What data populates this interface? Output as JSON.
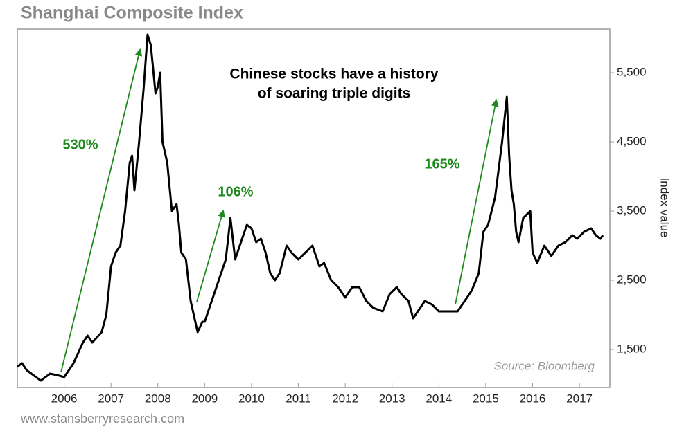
{
  "chart_data": {
    "type": "line",
    "title": "Shanghai Composite Index",
    "annotation_lines": [
      "Chinese stocks have a history",
      "of soaring triple digits"
    ],
    "annotations": [
      "530%",
      "106%",
      "165%"
    ],
    "source": "Source: Bloomberg",
    "footer": "www.stansberryresearch.com",
    "y_label": "Index value",
    "color": "#000000",
    "annotation_color": "#1e8a1e",
    "xlim": [
      2005.0,
      2017.65
    ],
    "xticks": [
      2006,
      2007,
      2008,
      2009,
      2010,
      2011,
      2012,
      2013,
      2014,
      2015,
      2016,
      2017
    ],
    "ylim": [
      950,
      6130
    ],
    "yticks": [
      {
        "value": 1500,
        "label": "1,500"
      },
      {
        "value": 2500,
        "label": "2,500"
      },
      {
        "value": 3500,
        "label": "3,500"
      },
      {
        "value": 4500,
        "label": "4,500"
      },
      {
        "value": 5500,
        "label": "5,500"
      }
    ],
    "x": [
      2005.0,
      2005.1,
      2005.2,
      2005.4,
      2005.5,
      2005.7,
      2005.9,
      2006.0,
      2006.2,
      2006.4,
      2006.5,
      2006.6,
      2006.8,
      2006.9,
      2007.0,
      2007.1,
      2007.2,
      2007.3,
      2007.4,
      2007.45,
      2007.5,
      2007.6,
      2007.7,
      2007.78,
      2007.85,
      2007.95,
      2008.0,
      2008.05,
      2008.1,
      2008.2,
      2008.3,
      2008.4,
      2008.45,
      2008.5,
      2008.6,
      2008.7,
      2008.8,
      2008.85,
      2008.95,
      2009.0,
      2009.1,
      2009.2,
      2009.3,
      2009.45,
      2009.55,
      2009.65,
      2009.75,
      2009.9,
      2010.0,
      2010.1,
      2010.2,
      2010.3,
      2010.4,
      2010.5,
      2010.6,
      2010.75,
      2010.85,
      2011.0,
      2011.15,
      2011.3,
      2011.45,
      2011.55,
      2011.7,
      2011.85,
      2012.0,
      2012.15,
      2012.3,
      2012.45,
      2012.6,
      2012.8,
      2012.95,
      2013.1,
      2013.2,
      2013.35,
      2013.45,
      2013.6,
      2013.7,
      2013.85,
      2014.0,
      2014.2,
      2014.4,
      2014.55,
      2014.7,
      2014.85,
      2014.95,
      2015.05,
      2015.2,
      2015.35,
      2015.45,
      2015.5,
      2015.55,
      2015.6,
      2015.65,
      2015.7,
      2015.8,
      2015.95,
      2016.0,
      2016.1,
      2016.25,
      2016.4,
      2016.55,
      2016.7,
      2016.85,
      2016.95,
      2017.1,
      2017.25,
      2017.35,
      2017.45,
      2017.5
    ],
    "values": [
      1250,
      1300,
      1200,
      1100,
      1050,
      1150,
      1120,
      1100,
      1300,
      1600,
      1700,
      1600,
      1750,
      2000,
      2700,
      2900,
      3000,
      3500,
      4200,
      4300,
      3800,
      4500,
      5300,
      6050,
      5900,
      5200,
      5300,
      5500,
      4500,
      4200,
      3500,
      3600,
      3300,
      2900,
      2800,
      2200,
      1900,
      1750,
      1900,
      1900,
      2100,
      2300,
      2500,
      2800,
      3400,
      2800,
      3000,
      3300,
      3250,
      3050,
      3100,
      2900,
      2600,
      2500,
      2600,
      3000,
      2900,
      2800,
      2900,
      3000,
      2700,
      2750,
      2500,
      2400,
      2250,
      2400,
      2400,
      2200,
      2100,
      2050,
      2300,
      2400,
      2300,
      2200,
      1950,
      2100,
      2200,
      2150,
      2050,
      2050,
      2050,
      2200,
      2350,
      2600,
      3200,
      3300,
      3700,
      4500,
      5150,
      4300,
      3800,
      3600,
      3200,
      3050,
      3400,
      3500,
      2900,
      2750,
      3000,
      2850,
      3000,
      3050,
      3150,
      3100,
      3200,
      3250,
      3150,
      3100,
      3150
    ]
  }
}
